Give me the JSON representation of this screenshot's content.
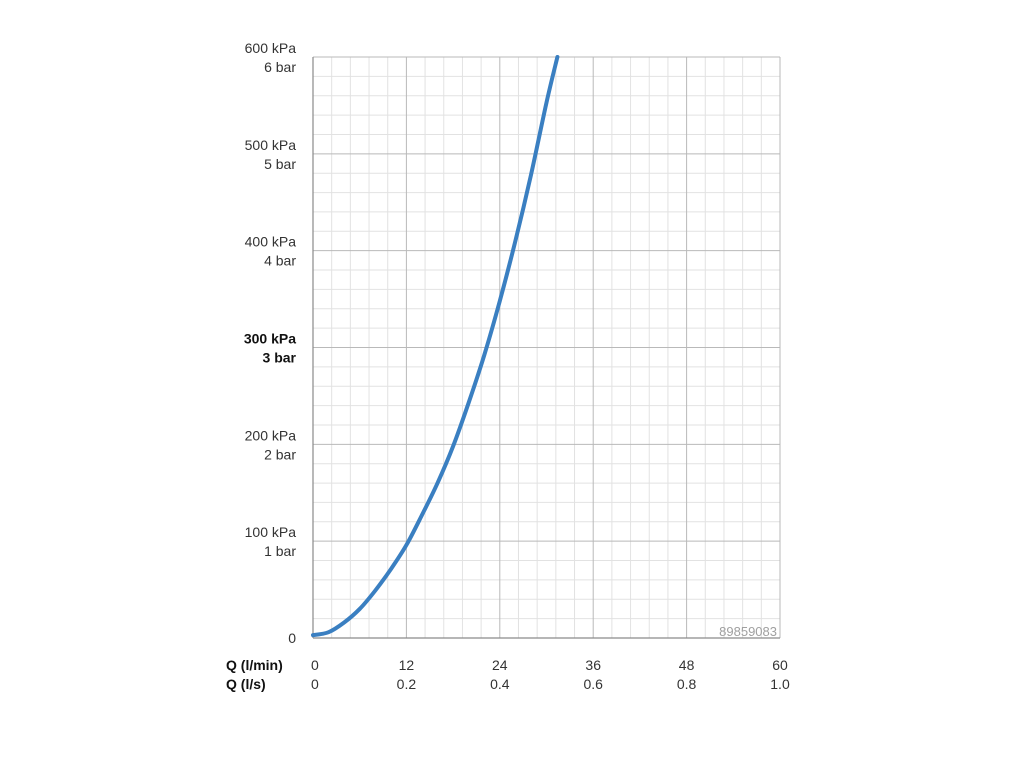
{
  "chart_data": {
    "type": "line",
    "xlabel": "Q (l/min)",
    "xlabel2": "Q (l/s)",
    "xlim": [
      0,
      60
    ],
    "ylim": [
      0,
      600
    ],
    "x_ticks": [
      "0",
      "12",
      "24",
      "36",
      "48",
      "60"
    ],
    "x_ticks2": [
      "0",
      "0.2",
      "0.4",
      "0.6",
      "0.8",
      "1.0"
    ],
    "y_ticks": [
      {
        "value": 0,
        "kpa": "0",
        "bar": "",
        "bold": false
      },
      {
        "value": 100,
        "kpa": "100 kPa",
        "bar": "1 bar",
        "bold": false
      },
      {
        "value": 200,
        "kpa": "200 kPa",
        "bar": "2 bar",
        "bold": false
      },
      {
        "value": 300,
        "kpa": "300 kPa",
        "bar": "3 bar",
        "bold": true
      },
      {
        "value": 400,
        "kpa": "400 kPa",
        "bar": "4 bar",
        "bold": false
      },
      {
        "value": 500,
        "kpa": "500 kPa",
        "bar": "5 bar",
        "bold": false
      },
      {
        "value": 600,
        "kpa": "600 kPa",
        "bar": "6 bar",
        "bold": false
      }
    ],
    "grid": true,
    "series": [
      {
        "color": "#3a7fc1",
        "x": [
          0,
          2,
          4,
          6,
          8,
          10,
          12,
          14,
          16,
          18,
          20,
          22,
          24,
          26,
          28,
          30,
          31.4
        ],
        "y": [
          3,
          6,
          16,
          30,
          49,
          71,
          96,
          127,
          160,
          198,
          243,
          292,
          348,
          410,
          478,
          553,
          600
        ]
      }
    ],
    "watermark": "89859083"
  }
}
